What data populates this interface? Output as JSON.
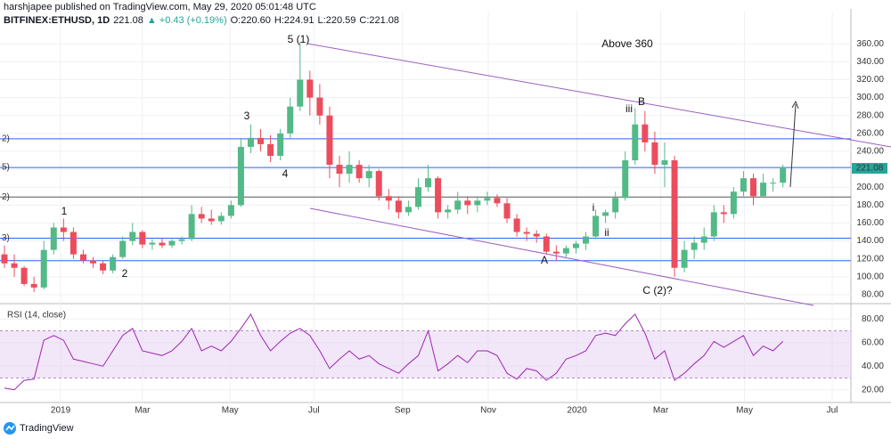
{
  "header": {
    "line1": "harshjapee published on TradingView.com, May 29, 2020 05:01:48 UTC",
    "symbol": "BITFINEX:ETHUSD, 1D",
    "last": "221.08",
    "change": "▲ +0.43 (+0.19%)",
    "open": "O:220.60",
    "high": "H:224.91",
    "low": "L:220.59",
    "close": "C:221.08"
  },
  "chart_data": [
    {
      "type": "candlestick",
      "up_color": "#53b987",
      "down_color": "#eb4d5c",
      "open": [
        125,
        115,
        110,
        92,
        88,
        130,
        155,
        150,
        125,
        118,
        115,
        107,
        122,
        140,
        150,
        136,
        138,
        135,
        140,
        142,
        170,
        165,
        162,
        168,
        180,
        245,
        255,
        248,
        235,
        260,
        290,
        320,
        300,
        280,
        225,
        215,
        225,
        210,
        218,
        190,
        185,
        172,
        178,
        200,
        210,
        172,
        175,
        185,
        180,
        185,
        188,
        182,
        165,
        150,
        148,
        145,
        128,
        126,
        132,
        137,
        145,
        168,
        172,
        188,
        230,
        270,
        250,
        225,
        230,
        110,
        130,
        138,
        145,
        172,
        170,
        195,
        210,
        190,
        205,
        205
      ],
      "high": [
        135,
        125,
        112,
        100,
        140,
        160,
        165,
        155,
        130,
        122,
        118,
        125,
        145,
        160,
        152,
        142,
        143,
        142,
        145,
        180,
        178,
        175,
        172,
        185,
        255,
        270,
        265,
        258,
        265,
        300,
        362,
        330,
        315,
        290,
        235,
        240,
        230,
        225,
        220,
        198,
        190,
        185,
        210,
        225,
        212,
        180,
        195,
        190,
        190,
        195,
        192,
        188,
        170,
        155,
        152,
        148,
        135,
        135,
        140,
        150,
        175,
        175,
        195,
        240,
        288,
        285,
        262,
        250,
        235,
        140,
        145,
        155,
        180,
        180,
        200,
        218,
        215,
        215,
        210,
        225
      ],
      "low": [
        110,
        100,
        90,
        83,
        86,
        125,
        140,
        120,
        115,
        110,
        103,
        104,
        120,
        135,
        132,
        130,
        132,
        132,
        136,
        140,
        160,
        158,
        158,
        165,
        178,
        238,
        240,
        228,
        230,
        255,
        285,
        280,
        270,
        210,
        200,
        205,
        205,
        200,
        185,
        175,
        165,
        168,
        175,
        195,
        165,
        165,
        170,
        170,
        172,
        180,
        178,
        160,
        145,
        140,
        138,
        125,
        118,
        122,
        126,
        130,
        142,
        160,
        165,
        185,
        225,
        240,
        215,
        200,
        100,
        105,
        120,
        130,
        140,
        160,
        165,
        190,
        180,
        188,
        195,
        200
      ],
      "close": [
        115,
        110,
        92,
        88,
        130,
        155,
        150,
        125,
        118,
        115,
        107,
        122,
        140,
        150,
        136,
        138,
        135,
        140,
        142,
        170,
        165,
        162,
        168,
        180,
        245,
        255,
        248,
        235,
        260,
        290,
        320,
        300,
        280,
        225,
        215,
        225,
        210,
        218,
        190,
        185,
        172,
        178,
        200,
        210,
        172,
        175,
        185,
        180,
        185,
        188,
        182,
        165,
        150,
        148,
        145,
        128,
        126,
        132,
        137,
        145,
        168,
        172,
        188,
        230,
        270,
        250,
        225,
        230,
        110,
        130,
        138,
        145,
        172,
        170,
        195,
        210,
        190,
        205,
        205,
        221.08
      ],
      "xlim": [
        -0.45,
        85.9
      ],
      "ylim": [
        71,
        397
      ],
      "yticks": [
        {
          "value": 80,
          "label": "80.00"
        },
        {
          "value": 100,
          "label": "100.00"
        },
        {
          "value": 120,
          "label": "120.00"
        },
        {
          "value": 140,
          "label": "140.00"
        },
        {
          "value": 160,
          "label": "160.00"
        },
        {
          "value": 180,
          "label": "180.00"
        },
        {
          "value": 200,
          "label": "200.00"
        },
        {
          "value": 220,
          "label": "220.00"
        },
        {
          "value": 240,
          "label": "240.00"
        },
        {
          "value": 260,
          "label": "260.00"
        },
        {
          "value": 280,
          "label": "280.00"
        },
        {
          "value": 300,
          "label": "300.00"
        },
        {
          "value": 320,
          "label": "320.00"
        },
        {
          "value": 340,
          "label": "340.00"
        },
        {
          "value": 360,
          "label": "360.00"
        }
      ],
      "levels": [
        254,
        222,
        189,
        143,
        118
      ],
      "level_colors": [
        "#2962ff",
        "#2962ff",
        "#555555",
        "#2962ff",
        "#2962ff"
      ],
      "level_labels": [
        "2)",
        "5)",
        "2)",
        "3)",
        null
      ],
      "annotations": [
        "5 (1)",
        "Above 360",
        "B",
        "iii",
        "3",
        "4",
        "1",
        "2",
        "i",
        "ii",
        "A",
        "C (2)?"
      ],
      "grid": true
    },
    {
      "type": "line",
      "title": "RSI (14, close)",
      "color": "#9c27b0",
      "band": [
        30,
        70
      ],
      "band_color": "#e9d5f5",
      "values": [
        21.5,
        20,
        28,
        29,
        62,
        66,
        62,
        46,
        44,
        42,
        40,
        53,
        66,
        72,
        53,
        51,
        49,
        53,
        61,
        72,
        53,
        57,
        53,
        61,
        72,
        84,
        66,
        53,
        61,
        68,
        72,
        66,
        53,
        38,
        46,
        53,
        46,
        49,
        42,
        38,
        34,
        42,
        49,
        70,
        36,
        42,
        49,
        43,
        53,
        53,
        49,
        34,
        29,
        38,
        36,
        28,
        34,
        46,
        49,
        53,
        66,
        68,
        66,
        76,
        84,
        68,
        46,
        53,
        28,
        34,
        42,
        49,
        61,
        56,
        61,
        66,
        49,
        57,
        53,
        61
      ],
      "xlim": [
        -0.45,
        85.9
      ],
      "ylim": [
        9.2,
        91.5
      ],
      "yticks": [
        {
          "value": 20,
          "label": "20.00"
        },
        {
          "value": 40,
          "label": "40.00"
        },
        {
          "value": 60,
          "label": "60.00"
        },
        {
          "value": 80,
          "label": "80.00"
        }
      ],
      "xticks": [
        {
          "value": 5.7,
          "label": "2019"
        },
        {
          "value": 14.0,
          "label": "Mar"
        },
        {
          "value": 22.9,
          "label": "May"
        },
        {
          "value": 31.4,
          "label": "Jul"
        },
        {
          "value": 40.4,
          "label": "Sep"
        },
        {
          "value": 49.1,
          "label": "Nov"
        },
        {
          "value": 58.1,
          "label": "2020"
        },
        {
          "value": 66.6,
          "label": "Mar"
        },
        {
          "value": 75.1,
          "label": "May"
        },
        {
          "value": 84.0,
          "label": "Jul"
        }
      ],
      "grid": true
    }
  ],
  "footer": {
    "brand": "TradingView"
  }
}
